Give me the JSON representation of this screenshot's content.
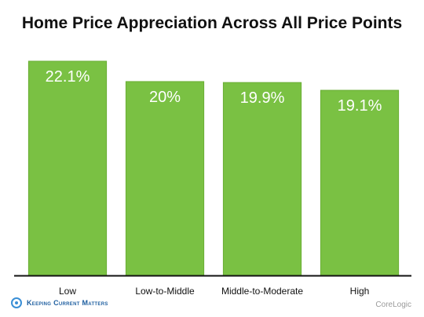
{
  "title": "Home Price Appreciation Across All Price Points",
  "footer": {
    "brand": "Keeping Current Matters",
    "source": "CoreLogic"
  },
  "colors": {
    "bar": "#7ac143",
    "bar_edge": "#6aae35",
    "label": "#ffffff",
    "axis": "#111111"
  },
  "chart_data": {
    "type": "bar",
    "title": "Home Price Appreciation Across All Price Points",
    "categories": [
      "Low",
      "Low-to-Middle",
      "Middle-to-Moderate",
      "High"
    ],
    "values": [
      22.1,
      20,
      19.9,
      19.1
    ],
    "data_labels": [
      "22.1%",
      "20%",
      "19.9%",
      "19.1%"
    ],
    "xlabel": "",
    "ylabel": "",
    "ylim": [
      0,
      23
    ],
    "grid": false,
    "legend": "none"
  }
}
